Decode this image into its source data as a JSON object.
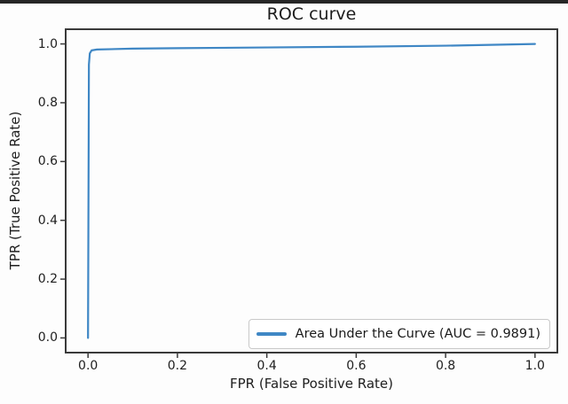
{
  "figure": {
    "background": "#fdfdfd",
    "top_border_color": "#262626"
  },
  "chart_data": {
    "type": "line",
    "title": "ROC curve",
    "xlabel": "FPR (False Positive Rate)",
    "ylabel": "TPR (True Positive Rate)",
    "xlim": [
      -0.05,
      1.05
    ],
    "ylim": [
      -0.05,
      1.05
    ],
    "x_ticks": [
      "0.0",
      "0.2",
      "0.4",
      "0.6",
      "0.8",
      "1.0"
    ],
    "y_ticks": [
      "0.0",
      "0.2",
      "0.4",
      "0.6",
      "0.8",
      "1.0"
    ],
    "grid": false,
    "legend": {
      "position": "lower right",
      "entries": [
        "Area Under the Curve (AUC = 0.9891)"
      ]
    },
    "auc": 0.9891,
    "series": [
      {
        "name": "ROC",
        "color": "#3f87c5",
        "points": [
          [
            0.0,
            0.0
          ],
          [
            0.002,
            0.93
          ],
          [
            0.004,
            0.968
          ],
          [
            0.008,
            0.978
          ],
          [
            0.02,
            0.981
          ],
          [
            0.1,
            0.984
          ],
          [
            0.2,
            0.9855
          ],
          [
            0.4,
            0.988
          ],
          [
            0.6,
            0.9905
          ],
          [
            0.8,
            0.994
          ],
          [
            1.0,
            1.0
          ]
        ]
      }
    ],
    "colors": {
      "spine": "#3a3a3a",
      "tick": "#3a3a3a",
      "curve": "#3f87c5",
      "text": "#1e1e1e"
    }
  }
}
